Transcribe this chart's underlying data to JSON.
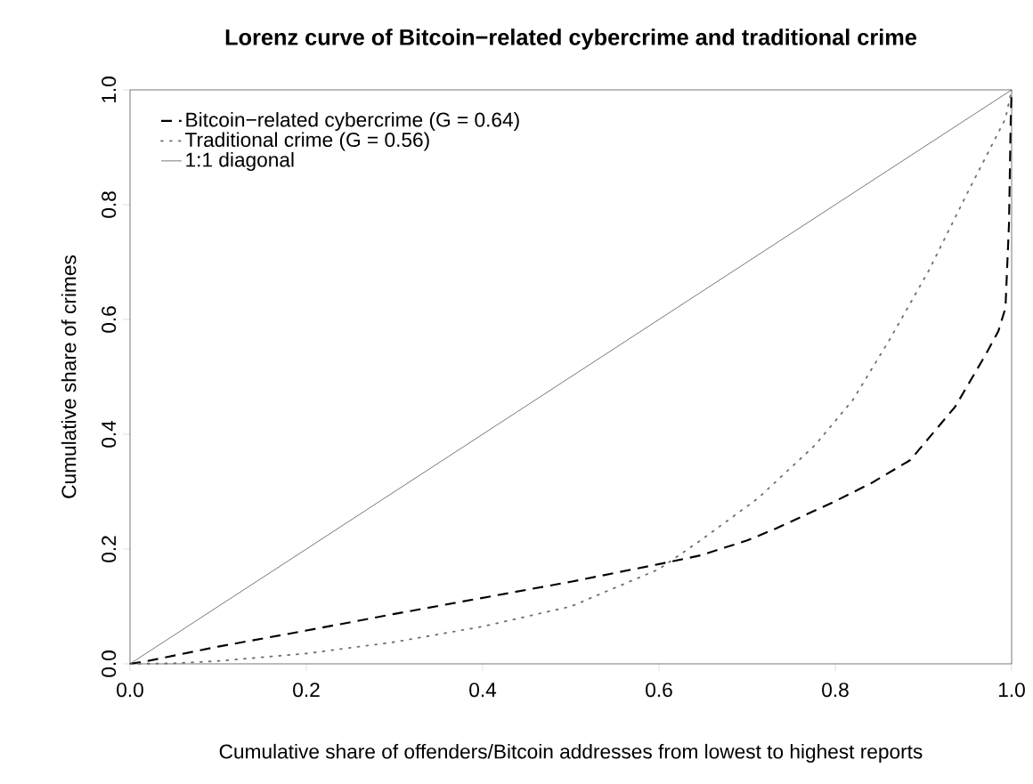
{
  "chart_data": {
    "type": "line",
    "title": "Lorenz curve of Bitcoin−related cybercrime and traditional crime",
    "xlabel": "Cumulative share of offenders/Bitcoin addresses from lowest to highest reports",
    "ylabel": "Cumulative share of crimes",
    "xlim": [
      0,
      1
    ],
    "ylim": [
      0,
      1
    ],
    "xticks": [
      {
        "value": 0,
        "label": "0.0"
      },
      {
        "value": 0.2,
        "label": "0.2"
      },
      {
        "value": 0.4,
        "label": "0.4"
      },
      {
        "value": 0.6,
        "label": "0.6"
      },
      {
        "value": 0.8,
        "label": "0.8"
      },
      {
        "value": 1,
        "label": "1.0"
      }
    ],
    "yticks": [
      {
        "value": 0,
        "label": "0.0"
      },
      {
        "value": 0.2,
        "label": "0.2"
      },
      {
        "value": 0.4,
        "label": "0.4"
      },
      {
        "value": 0.6,
        "label": "0.6"
      },
      {
        "value": 0.8,
        "label": "0.8"
      },
      {
        "value": 1,
        "label": "1.0"
      }
    ],
    "legend": "top left",
    "grid": false,
    "marker": "none",
    "series": [
      {
        "name": "Bitcoin−related cybercrime (G = 0.64)",
        "color": "#000000",
        "line_style": "dashed",
        "x": [
          0,
          0.02,
          0.1,
          0.2,
          0.3,
          0.4,
          0.5,
          0.604,
          0.647,
          0.7,
          0.733,
          0.798,
          0.841,
          0.885,
          0.936,
          0.971,
          0.985,
          0.993,
          0.997,
          0.999,
          1
        ],
        "values": [
          0,
          0.005,
          0.03,
          0.058,
          0.087,
          0.115,
          0.143,
          0.175,
          0.189,
          0.215,
          0.236,
          0.282,
          0.315,
          0.355,
          0.448,
          0.54,
          0.58,
          0.62,
          0.766,
          0.95,
          1
        ]
      },
      {
        "name": "Traditional crime (G = 0.56)",
        "color": "#707070",
        "line_style": "dotted",
        "x": [
          0,
          0.05,
          0.1,
          0.2,
          0.3,
          0.4,
          0.5,
          0.6,
          0.647,
          0.712,
          0.777,
          0.82,
          0.862,
          0.906,
          0.949,
          0.993,
          1
        ],
        "values": [
          0,
          0.001,
          0.005,
          0.018,
          0.038,
          0.065,
          0.1,
          0.165,
          0.215,
          0.288,
          0.381,
          0.46,
          0.566,
          0.685,
          0.818,
          0.95,
          1
        ]
      },
      {
        "name": "1:1 diagonal",
        "color": "#000000",
        "line_style": "solid",
        "x": [
          0,
          1
        ],
        "values": [
          0,
          1
        ]
      }
    ]
  }
}
